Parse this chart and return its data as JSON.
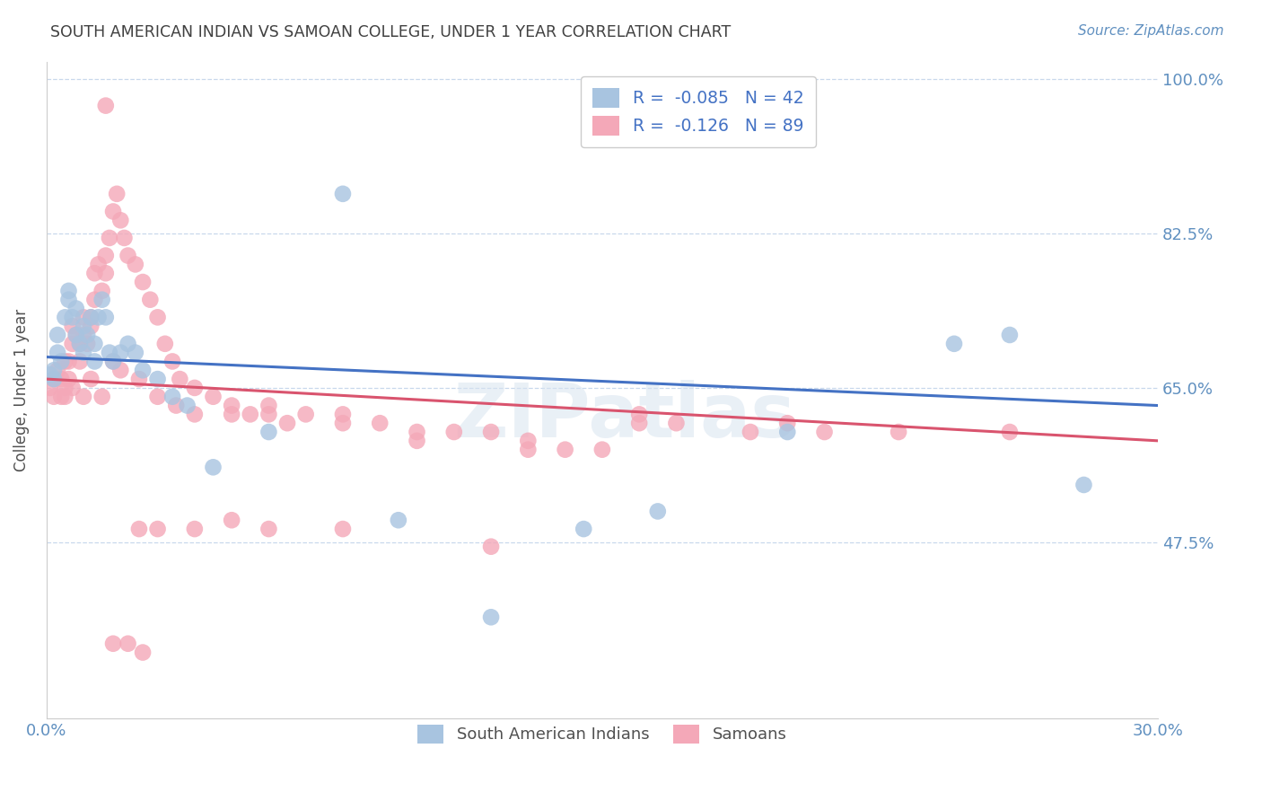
{
  "title": "SOUTH AMERICAN INDIAN VS SAMOAN COLLEGE, UNDER 1 YEAR CORRELATION CHART",
  "source": "Source: ZipAtlas.com",
  "ylabel": "College, Under 1 year",
  "xlim": [
    0.0,
    0.3
  ],
  "ylim": [
    0.275,
    1.02
  ],
  "ytick_positions": [
    0.475,
    0.65,
    0.825,
    1.0
  ],
  "ytick_labels": [
    "47.5%",
    "65.0%",
    "82.5%",
    "100.0%"
  ],
  "legend_r_blue": "-0.085",
  "legend_n_blue": "42",
  "legend_r_pink": "-0.126",
  "legend_n_pink": "89",
  "blue_color": "#a8c4e0",
  "pink_color": "#f4a8b8",
  "blue_line_color": "#4472c4",
  "pink_line_color": "#d9546e",
  "watermark": "ZIPatlas",
  "title_color": "#404040",
  "axis_label_color": "#505050",
  "tick_color": "#6090c0",
  "grid_color": "#c8d8ec",
  "blue_scatter_x": [
    0.001,
    0.002,
    0.002,
    0.003,
    0.003,
    0.004,
    0.005,
    0.006,
    0.006,
    0.007,
    0.008,
    0.008,
    0.009,
    0.01,
    0.01,
    0.011,
    0.012,
    0.013,
    0.013,
    0.014,
    0.015,
    0.016,
    0.017,
    0.018,
    0.02,
    0.022,
    0.024,
    0.026,
    0.03,
    0.034,
    0.038,
    0.045,
    0.06,
    0.08,
    0.095,
    0.12,
    0.145,
    0.165,
    0.2,
    0.245,
    0.26,
    0.28
  ],
  "blue_scatter_y": [
    0.665,
    0.67,
    0.66,
    0.69,
    0.71,
    0.68,
    0.73,
    0.75,
    0.76,
    0.73,
    0.74,
    0.71,
    0.7,
    0.72,
    0.69,
    0.71,
    0.73,
    0.68,
    0.7,
    0.73,
    0.75,
    0.73,
    0.69,
    0.68,
    0.69,
    0.7,
    0.69,
    0.67,
    0.66,
    0.64,
    0.63,
    0.56,
    0.6,
    0.87,
    0.5,
    0.39,
    0.49,
    0.51,
    0.6,
    0.7,
    0.71,
    0.54
  ],
  "pink_scatter_x": [
    0.001,
    0.002,
    0.002,
    0.003,
    0.004,
    0.004,
    0.005,
    0.005,
    0.006,
    0.006,
    0.007,
    0.007,
    0.008,
    0.009,
    0.009,
    0.01,
    0.01,
    0.011,
    0.012,
    0.012,
    0.013,
    0.013,
    0.014,
    0.015,
    0.016,
    0.016,
    0.017,
    0.018,
    0.019,
    0.02,
    0.021,
    0.022,
    0.024,
    0.026,
    0.028,
    0.03,
    0.032,
    0.034,
    0.036,
    0.04,
    0.045,
    0.05,
    0.055,
    0.06,
    0.065,
    0.07,
    0.08,
    0.09,
    0.1,
    0.11,
    0.12,
    0.13,
    0.14,
    0.15,
    0.16,
    0.17,
    0.19,
    0.2,
    0.21,
    0.23,
    0.005,
    0.007,
    0.01,
    0.012,
    0.015,
    0.018,
    0.02,
    0.025,
    0.03,
    0.035,
    0.04,
    0.05,
    0.06,
    0.08,
    0.1,
    0.13,
    0.16,
    0.025,
    0.03,
    0.04,
    0.05,
    0.06,
    0.08,
    0.12,
    0.016,
    0.018,
    0.022,
    0.026,
    0.26
  ],
  "pink_scatter_y": [
    0.65,
    0.66,
    0.64,
    0.67,
    0.66,
    0.64,
    0.68,
    0.65,
    0.68,
    0.66,
    0.7,
    0.72,
    0.71,
    0.68,
    0.7,
    0.71,
    0.73,
    0.7,
    0.73,
    0.72,
    0.75,
    0.78,
    0.79,
    0.76,
    0.8,
    0.78,
    0.82,
    0.85,
    0.87,
    0.84,
    0.82,
    0.8,
    0.79,
    0.77,
    0.75,
    0.73,
    0.7,
    0.68,
    0.66,
    0.65,
    0.64,
    0.63,
    0.62,
    0.63,
    0.61,
    0.62,
    0.62,
    0.61,
    0.6,
    0.6,
    0.6,
    0.59,
    0.58,
    0.58,
    0.62,
    0.61,
    0.6,
    0.61,
    0.6,
    0.6,
    0.64,
    0.65,
    0.64,
    0.66,
    0.64,
    0.68,
    0.67,
    0.66,
    0.64,
    0.63,
    0.62,
    0.62,
    0.62,
    0.61,
    0.59,
    0.58,
    0.61,
    0.49,
    0.49,
    0.49,
    0.5,
    0.49,
    0.49,
    0.47,
    0.97,
    0.36,
    0.36,
    0.35,
    0.6
  ]
}
